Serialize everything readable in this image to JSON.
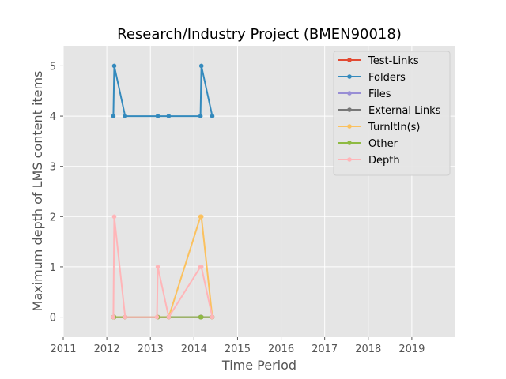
{
  "chart_data": {
    "type": "line",
    "title": "Research/Industry Project (BMEN90018)",
    "xlabel": "Time Period",
    "ylabel": "Maximum depth of LMS content items",
    "xlim": [
      2011,
      2020
    ],
    "ylim": [
      -0.4,
      5.4
    ],
    "xticks": [
      2011,
      2012,
      2013,
      2014,
      2015,
      2016,
      2017,
      2018,
      2019
    ],
    "yticks": [
      0,
      1,
      2,
      3,
      4,
      5
    ],
    "grid": true,
    "legend_position": "top-right",
    "series": [
      {
        "name": "Test-Links",
        "color": "#E24A33",
        "x": [
          2012.15,
          2012.17,
          2012.42,
          2013.17,
          2013.42,
          2014.15,
          2014.17,
          2014.42
        ],
        "y": [
          0,
          0,
          0,
          0,
          0,
          0,
          0,
          0
        ]
      },
      {
        "name": "Folders",
        "color": "#348ABD",
        "x": [
          2012.15,
          2012.17,
          2012.42,
          2013.17,
          2013.42,
          2014.15,
          2014.17,
          2014.42
        ],
        "y": [
          4,
          5,
          4,
          4,
          4,
          4,
          5,
          4
        ]
      },
      {
        "name": "Files",
        "color": "#988ED5",
        "x": [
          2012.15,
          2012.17,
          2012.42,
          2013.17,
          2013.42,
          2014.15,
          2014.17,
          2014.42
        ],
        "y": [
          0,
          0,
          0,
          0,
          0,
          0,
          0,
          0
        ]
      },
      {
        "name": "External Links",
        "color": "#777777",
        "x": [
          2012.15,
          2012.17,
          2012.42,
          2013.17,
          2013.42,
          2014.15,
          2014.17,
          2014.42
        ],
        "y": [
          0,
          0,
          0,
          0,
          0,
          0,
          0,
          0
        ]
      },
      {
        "name": "TurnItIn(s)",
        "color": "#FBC15E",
        "x": [
          2012.15,
          2012.17,
          2012.42,
          2013.17,
          2013.42,
          2014.15,
          2014.17,
          2014.42
        ],
        "y": [
          0,
          0,
          0,
          0,
          0,
          2,
          2,
          0
        ]
      },
      {
        "name": "Other",
        "color": "#8EBA42",
        "x": [
          2012.15,
          2012.17,
          2012.42,
          2013.17,
          2013.42,
          2014.15,
          2014.17,
          2014.42
        ],
        "y": [
          0,
          0,
          0,
          0,
          0,
          0,
          0,
          0
        ]
      },
      {
        "name": "Depth",
        "color": "#FFB5B8",
        "x": [
          2012.15,
          2012.17,
          2012.42,
          2013.15,
          2013.17,
          2013.42,
          2014.15,
          2014.17,
          2014.42
        ],
        "y": [
          0,
          2,
          0,
          0,
          1,
          0,
          1,
          1,
          0
        ]
      }
    ]
  }
}
